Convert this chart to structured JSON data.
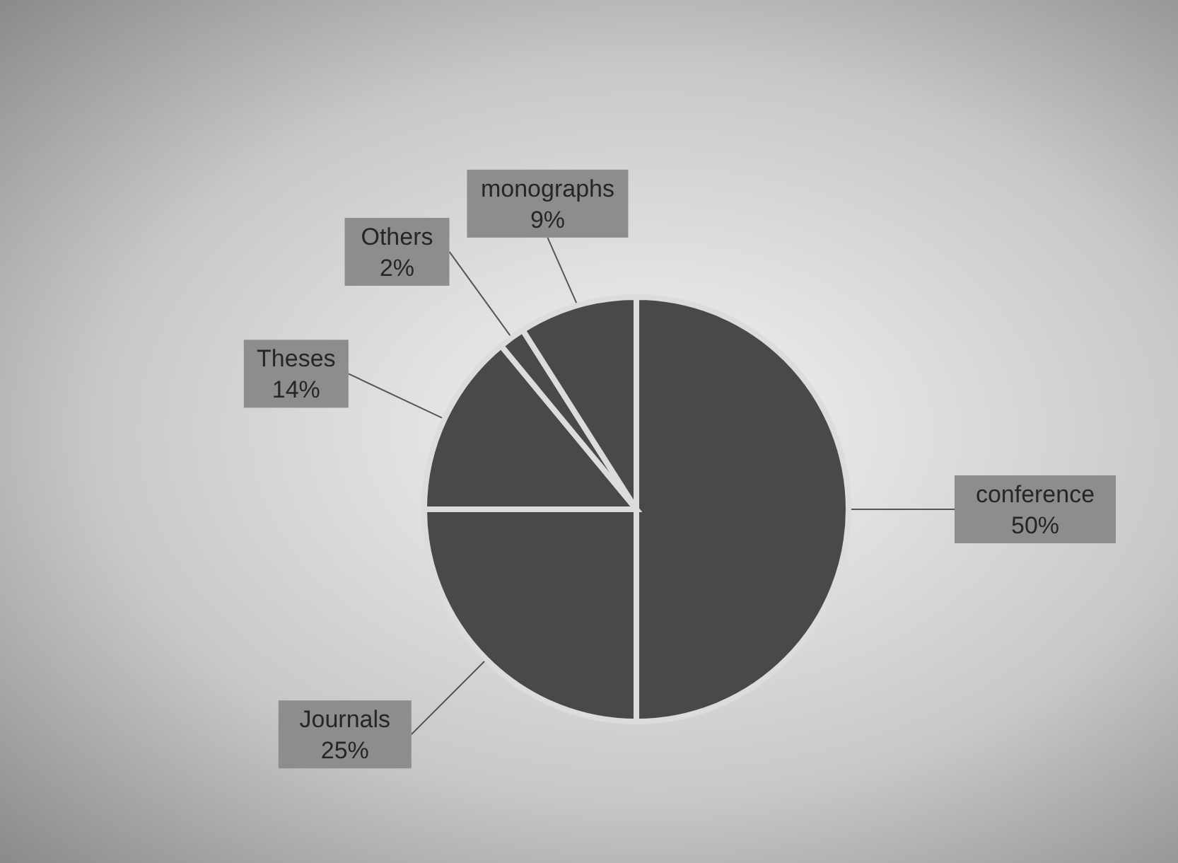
{
  "chart_data": {
    "type": "pie",
    "categories": [
      "conference",
      "Journals",
      "Theses",
      "Others",
      "monographs"
    ],
    "values": [
      50,
      25,
      14,
      2,
      9
    ],
    "value_labels": [
      "50%",
      "25%",
      "14%",
      "2%",
      "9%"
    ],
    "colors": [
      "#494949",
      "#494949",
      "#494949",
      "#494949",
      "#494949"
    ],
    "legend": false
  }
}
